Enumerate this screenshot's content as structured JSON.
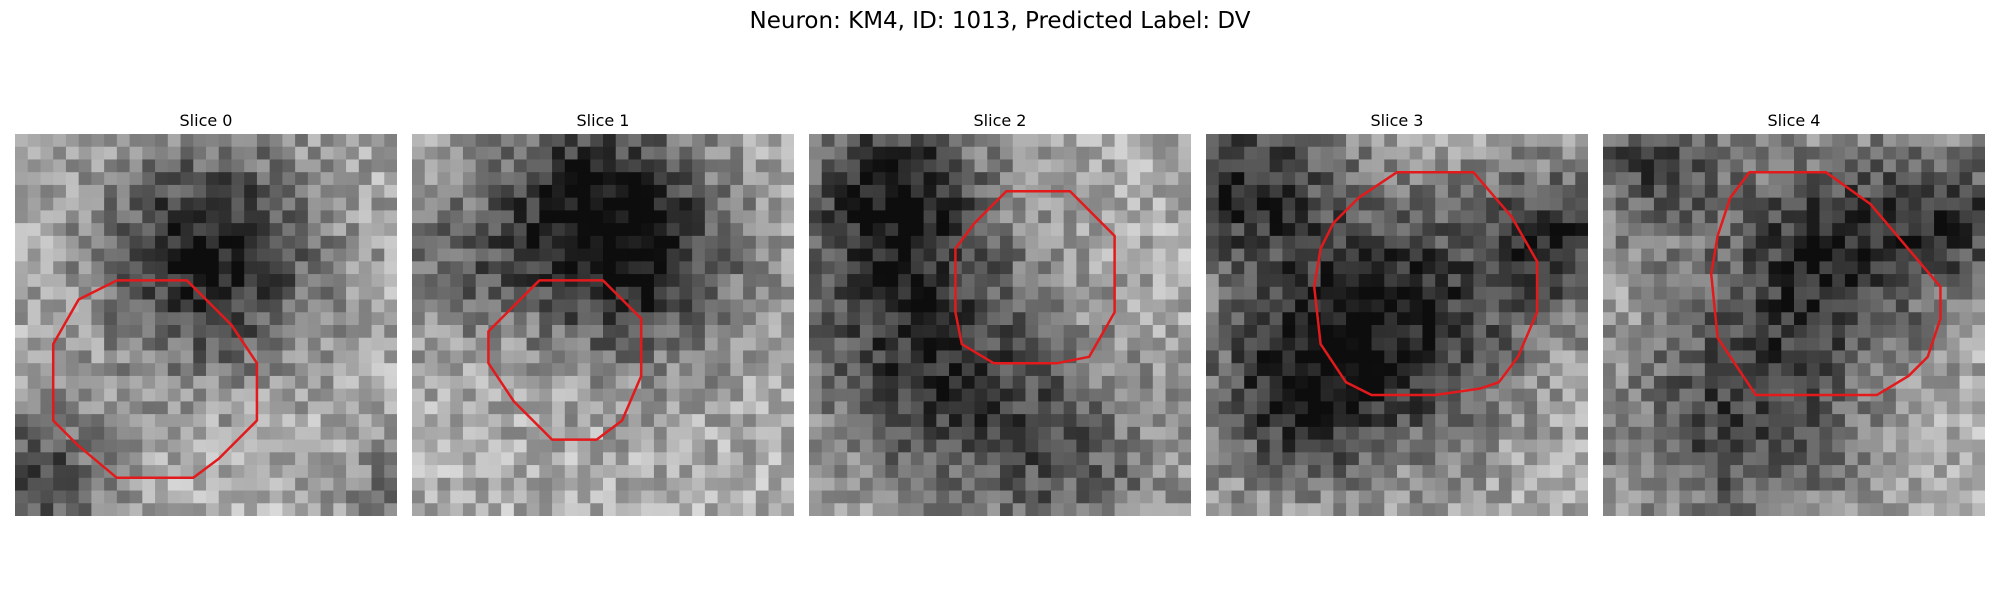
{
  "figure": {
    "title": "Neuron: KM4, ID: 1013, Predicted Label: DV",
    "roi_color": "#e31a1c",
    "slices": [
      {
        "title": "Slice 0"
      },
      {
        "title": "Slice 1"
      },
      {
        "title": "Slice 2"
      },
      {
        "title": "Slice 3"
      },
      {
        "title": "Slice 4"
      }
    ]
  }
}
